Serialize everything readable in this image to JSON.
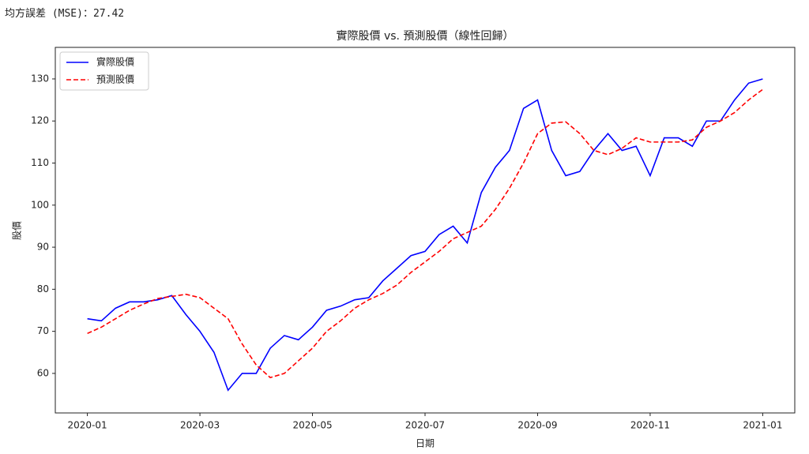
{
  "mse_text": "均方誤差 (MSE)：27.42",
  "chart_data": {
    "type": "line",
    "title": "實際股價 vs. 預測股價（線性回歸）",
    "xlabel": "日期",
    "ylabel": "股價",
    "x": [
      0,
      0.25,
      0.5,
      0.75,
      1,
      1.25,
      1.5,
      1.75,
      2,
      2.25,
      2.5,
      2.75,
      3,
      3.25,
      3.5,
      3.75,
      4,
      4.25,
      4.5,
      4.75,
      5,
      5.25,
      5.5,
      5.75,
      6,
      6.25,
      6.5,
      6.75,
      7,
      7.25,
      7.5,
      7.75,
      8,
      8.25,
      8.5,
      8.75,
      9,
      9.25,
      9.5,
      9.75,
      10,
      10.25,
      10.5,
      10.75,
      11,
      11.25,
      11.5,
      11.75,
      12
    ],
    "series": [
      {
        "name": "實際股價",
        "color": "#0000ff",
        "dash": "solid",
        "values": [
          73,
          72.5,
          75.5,
          77,
          77,
          77.5,
          78.5,
          74,
          70,
          65,
          56,
          60,
          60,
          66,
          69,
          68,
          71,
          75,
          76,
          77.5,
          78,
          82,
          85,
          88,
          89,
          93,
          95,
          91,
          103,
          109,
          113,
          123,
          125,
          113,
          107,
          108,
          113,
          117,
          113,
          114,
          107,
          116,
          116,
          114,
          120,
          120,
          125,
          129,
          130
        ]
      },
      {
        "name": "預測股價",
        "color": "#ff0000",
        "dash": "dashed",
        "values": [
          69.5,
          71,
          73,
          75,
          76.5,
          77.8,
          78.3,
          78.8,
          78,
          75.5,
          73,
          67,
          62,
          59,
          60,
          63,
          66,
          70,
          72.5,
          75.5,
          77.5,
          79,
          81,
          84,
          86.5,
          89,
          92,
          93.5,
          95,
          99,
          104,
          110,
          117,
          119.5,
          119.8,
          117,
          113,
          112,
          113.5,
          116,
          115,
          115,
          115,
          115.5,
          118.5,
          120,
          122,
          125,
          127.5
        ]
      }
    ],
    "xlim": [
      -0.57,
      12.57
    ],
    "xticks": [
      {
        "value": 0,
        "label": "2020-01"
      },
      {
        "value": 2,
        "label": "2020-03"
      },
      {
        "value": 4,
        "label": "2020-05"
      },
      {
        "value": 6,
        "label": "2020-07"
      },
      {
        "value": 8,
        "label": "2020-09"
      },
      {
        "value": 10,
        "label": "2020-11"
      },
      {
        "value": 12,
        "label": "2021-01"
      }
    ],
    "ylim": [
      50.6,
      137.5
    ],
    "yticks": [
      60,
      70,
      80,
      90,
      100,
      110,
      120,
      130
    ],
    "legend": "upper left",
    "grid": false
  }
}
